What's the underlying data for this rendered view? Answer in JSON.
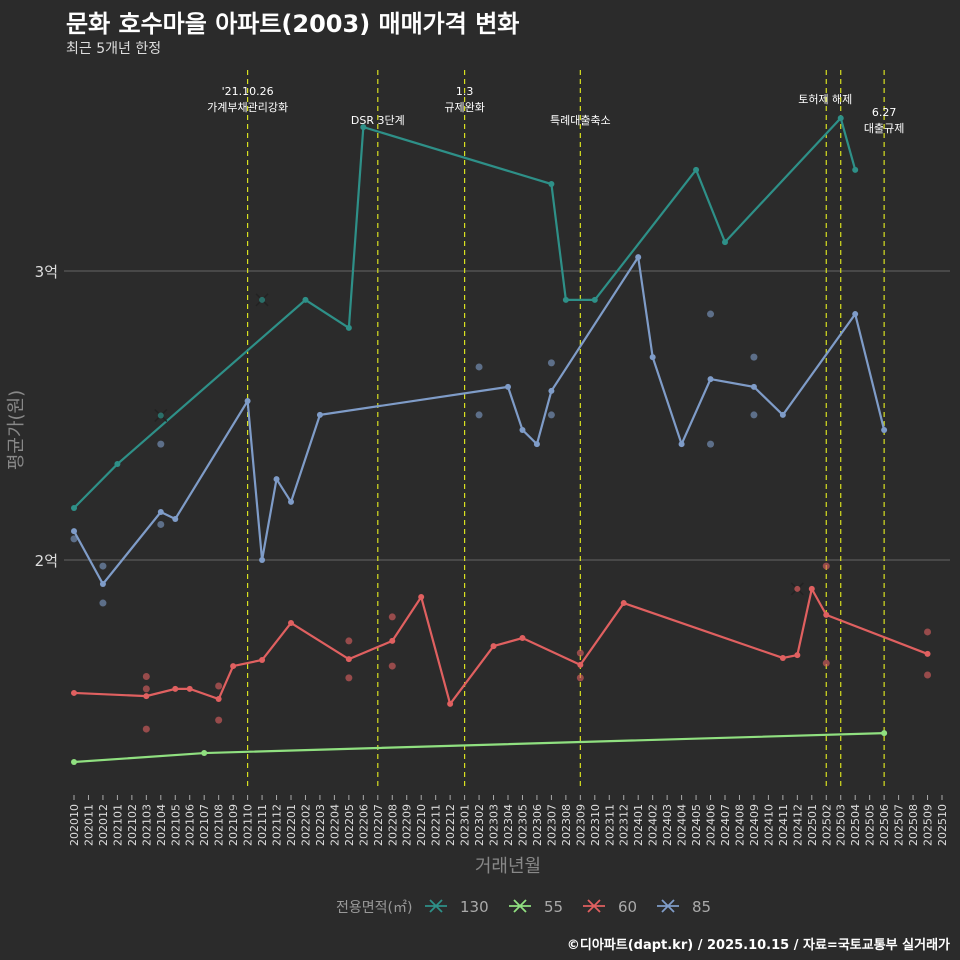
{
  "title": "문화 호수마을 아파트(2003) 매매가격 변화",
  "subtitle": "최근 5개년 한정",
  "caption": "©디아파트(dapt.kr) / 2025.10.15 / 자료=국토교통부 실거래가",
  "chart_data": {
    "type": "line",
    "xlabel": "거래년월",
    "ylabel": "평균가(원)",
    "y_unit": "만원",
    "ylim": [
      12000,
      37500
    ],
    "y_ticks": [
      {
        "value": 20000,
        "label": "2억"
      },
      {
        "value": 30000,
        "label": "3억"
      }
    ],
    "categories": [
      "202010",
      "202011",
      "202012",
      "202101",
      "202102",
      "202103",
      "202104",
      "202105",
      "202106",
      "202107",
      "202108",
      "202109",
      "202110",
      "202111",
      "202112",
      "202201",
      "202202",
      "202203",
      "202204",
      "202205",
      "202206",
      "202207",
      "202208",
      "202209",
      "202210",
      "202211",
      "202212",
      "202301",
      "202302",
      "202303",
      "202304",
      "202305",
      "202306",
      "202307",
      "202308",
      "202309",
      "202310",
      "202311",
      "202312",
      "202401",
      "202402",
      "202403",
      "202404",
      "202405",
      "202406",
      "202407",
      "202408",
      "202409",
      "202410",
      "202411",
      "202412",
      "202501",
      "202502",
      "202503",
      "202504",
      "202505",
      "202506",
      "202507",
      "202508",
      "202509",
      "202510"
    ],
    "legend_title": "전용면적(㎡)",
    "legend_position": "bottom",
    "series": [
      {
        "name": "130",
        "color": "#2e9088",
        "line": [
          [
            0,
            21800
          ],
          [
            3,
            23320
          ],
          [
            16,
            29000
          ],
          [
            19,
            28030
          ],
          [
            20,
            34980
          ],
          [
            33,
            33010
          ],
          [
            34,
            29000
          ],
          [
            36,
            29000
          ],
          [
            43,
            33500
          ],
          [
            45,
            31000
          ],
          [
            53,
            35290
          ],
          [
            54,
            33500
          ]
        ],
        "points": [],
        "cancelled": [
          [
            6,
            25000
          ],
          [
            13,
            29000
          ]
        ]
      },
      {
        "name": "55",
        "color": "#90e080",
        "line": [
          [
            0,
            13010
          ],
          [
            9,
            13320
          ],
          [
            56,
            14010
          ]
        ],
        "points": [],
        "cancelled": []
      },
      {
        "name": "60",
        "color": "#e06060",
        "line": [
          [
            0,
            15400
          ],
          [
            5,
            15290
          ],
          [
            7,
            15540
          ],
          [
            8,
            15540
          ],
          [
            10,
            15190
          ],
          [
            11,
            16330
          ],
          [
            13,
            16540
          ],
          [
            15,
            17820
          ],
          [
            19,
            16570
          ],
          [
            22,
            17200
          ],
          [
            24,
            18720
          ],
          [
            26,
            15020
          ],
          [
            29,
            17020
          ],
          [
            31,
            17300
          ],
          [
            35,
            16370
          ],
          [
            38,
            18510
          ],
          [
            49,
            16610
          ],
          [
            50,
            16710
          ],
          [
            51,
            19000
          ],
          [
            52,
            18100
          ],
          [
            59,
            16750
          ]
        ],
        "points": [
          [
            5,
            15970
          ],
          [
            5,
            15540
          ],
          [
            5,
            14150
          ],
          [
            10,
            15640
          ],
          [
            10,
            14460
          ],
          [
            19,
            17200
          ],
          [
            19,
            15920
          ],
          [
            22,
            18030
          ],
          [
            22,
            16330
          ],
          [
            35,
            16780
          ],
          [
            35,
            15920
          ],
          [
            52,
            19790
          ],
          [
            52,
            16430
          ],
          [
            59,
            17510
          ],
          [
            59,
            16020
          ]
        ],
        "cancelled": [
          [
            50,
            19000
          ]
        ]
      },
      {
        "name": "85",
        "color": "#7f9cc8",
        "line": [
          [
            0,
            21000
          ],
          [
            2,
            19170
          ],
          [
            6,
            21660
          ],
          [
            7,
            21420
          ],
          [
            12,
            25500
          ],
          [
            13,
            20000
          ],
          [
            14,
            22800
          ],
          [
            15,
            22010
          ],
          [
            17,
            25020
          ],
          [
            30,
            25990
          ],
          [
            31,
            24500
          ],
          [
            32,
            24010
          ],
          [
            33,
            25850
          ],
          [
            39,
            30480
          ],
          [
            40,
            27020
          ],
          [
            42,
            24010
          ],
          [
            44,
            26260
          ],
          [
            47,
            25990
          ],
          [
            49,
            25020
          ],
          [
            54,
            28510
          ],
          [
            56,
            24500
          ]
        ],
        "points": [
          [
            0,
            20730
          ],
          [
            2,
            19790
          ],
          [
            2,
            18510
          ],
          [
            6,
            24010
          ],
          [
            6,
            21230
          ],
          [
            28,
            26680
          ],
          [
            28,
            25020
          ],
          [
            33,
            26820
          ],
          [
            33,
            25020
          ],
          [
            44,
            28510
          ],
          [
            44,
            24010
          ],
          [
            47,
            27020
          ],
          [
            47,
            25020
          ]
        ],
        "cancelled": []
      }
    ],
    "events": [
      {
        "index": 12,
        "lines": [
          "'21.10.26",
          "가계부채관리강화"
        ],
        "row": 0
      },
      {
        "index": 21,
        "lines": [
          "DSR 3단계"
        ],
        "row": 2
      },
      {
        "index": 27,
        "lines": [
          "1.3",
          "규제완화"
        ],
        "row": 0
      },
      {
        "index": 35,
        "lines": [
          "특례대출축소"
        ],
        "row": 2
      },
      {
        "index": 52,
        "lines": [
          "토허제 해제"
        ],
        "row": 1
      },
      {
        "index": 53,
        "lines": [],
        "row": 1
      },
      {
        "index": 56,
        "lines": [
          "6.27",
          "대출규제"
        ],
        "row": 3
      }
    ]
  }
}
